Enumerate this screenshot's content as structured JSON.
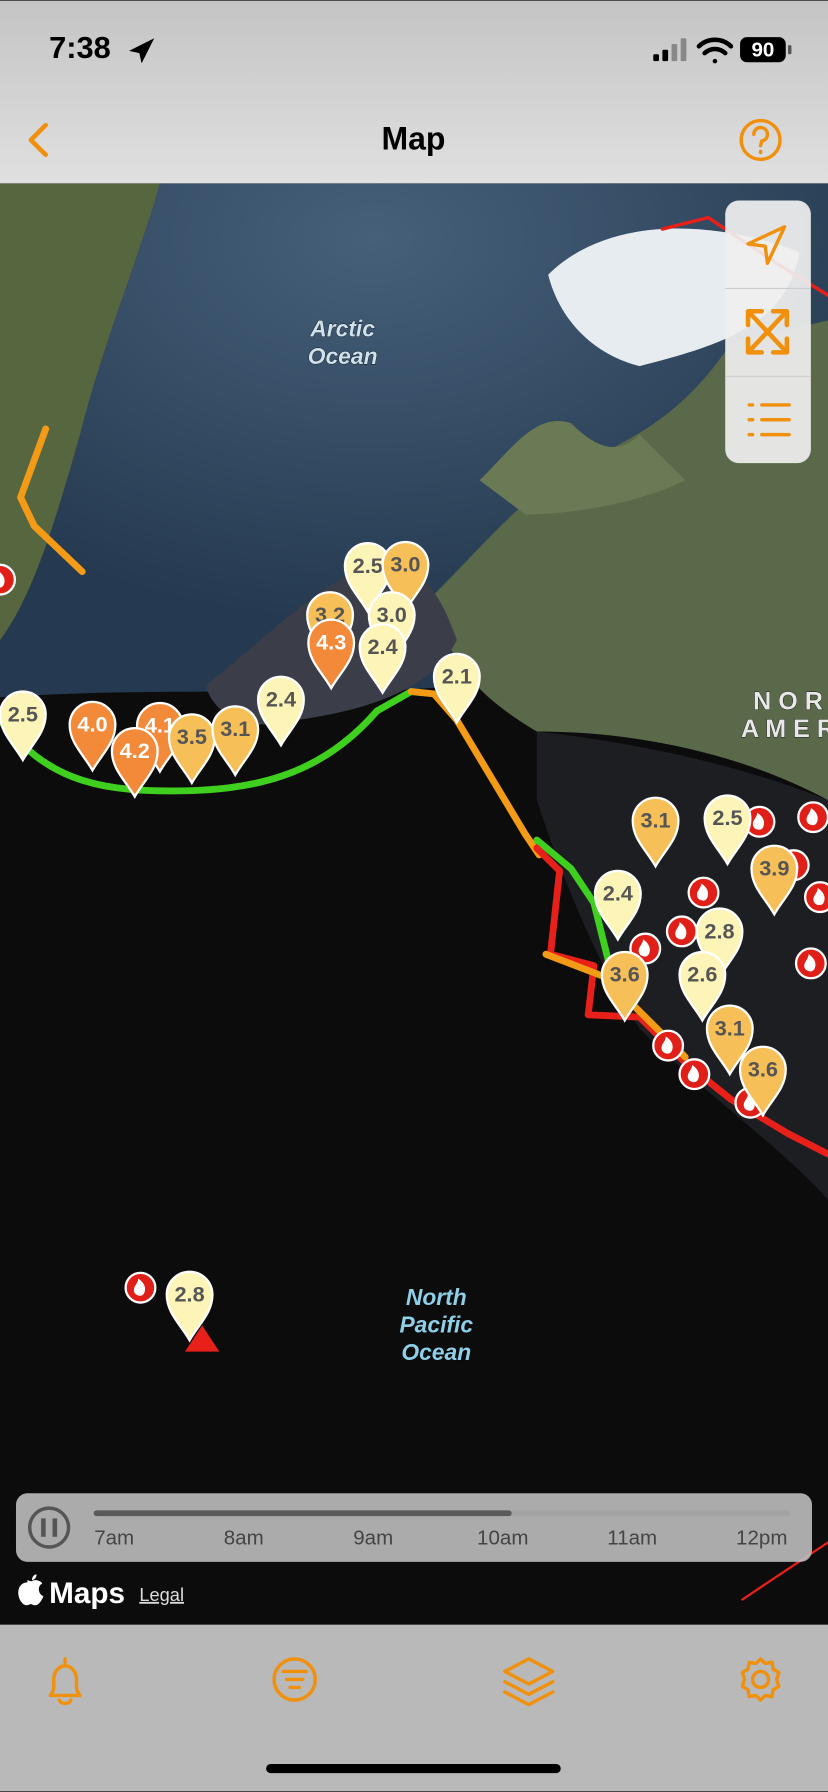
{
  "status_bar": {
    "time": "7:38",
    "battery": "90"
  },
  "header": {
    "title": "Map"
  },
  "map": {
    "labels": [
      [
        "Arctic",
        "Ocean"
      ],
      [
        "North",
        "Pacific",
        "Ocean"
      ],
      [
        "N O R",
        "A M E R"
      ]
    ],
    "markers": [
      {
        "label": "2.5",
        "color": "#fdf5b8"
      },
      {
        "label": "3.0",
        "color": "#f7bf58"
      },
      {
        "label": "3.2",
        "color": "#f7bf58"
      },
      {
        "label": "3.0",
        "color": "#fdf5b8"
      },
      {
        "label": "2.4",
        "color": "#fdf5b8"
      },
      {
        "label": "4.3",
        "color": "#f28a3a"
      },
      {
        "label": "2.5",
        "color": "#fdf5b8"
      },
      {
        "label": "4.0",
        "color": "#f28a3a"
      },
      {
        "label": "4.1",
        "color": "#f28a3a"
      },
      {
        "label": "4.2",
        "color": "#f28a3a"
      },
      {
        "label": "3.5",
        "color": "#f7bf58"
      },
      {
        "label": "3.1",
        "color": "#f7bf58"
      },
      {
        "label": "2.4",
        "color": "#fdf5b8"
      },
      {
        "label": "2.1",
        "color": "#fdf5b8"
      },
      {
        "label": "3.1",
        "color": "#f7bf58"
      },
      {
        "label": "2.5",
        "color": "#fdf5b8"
      },
      {
        "label": "3.9",
        "color": "#f7bf58"
      },
      {
        "label": "2.4",
        "color": "#fdf5b8"
      },
      {
        "label": "2.8",
        "color": "#fdf5b8"
      },
      {
        "label": "3.6",
        "color": "#f7bf58"
      },
      {
        "label": "2.6",
        "color": "#fdf5b8"
      },
      {
        "label": "3.1",
        "color": "#f7bf58"
      },
      {
        "label": "3.6",
        "color": "#f7bf58"
      },
      {
        "label": "2.8",
        "color": "#fdf5b8"
      }
    ]
  },
  "timeline": {
    "labels": [
      "7am",
      "8am",
      "9am",
      "10am",
      "11am",
      "12pm"
    ]
  },
  "attribution": {
    "logo": "Maps",
    "legal": "Legal"
  }
}
